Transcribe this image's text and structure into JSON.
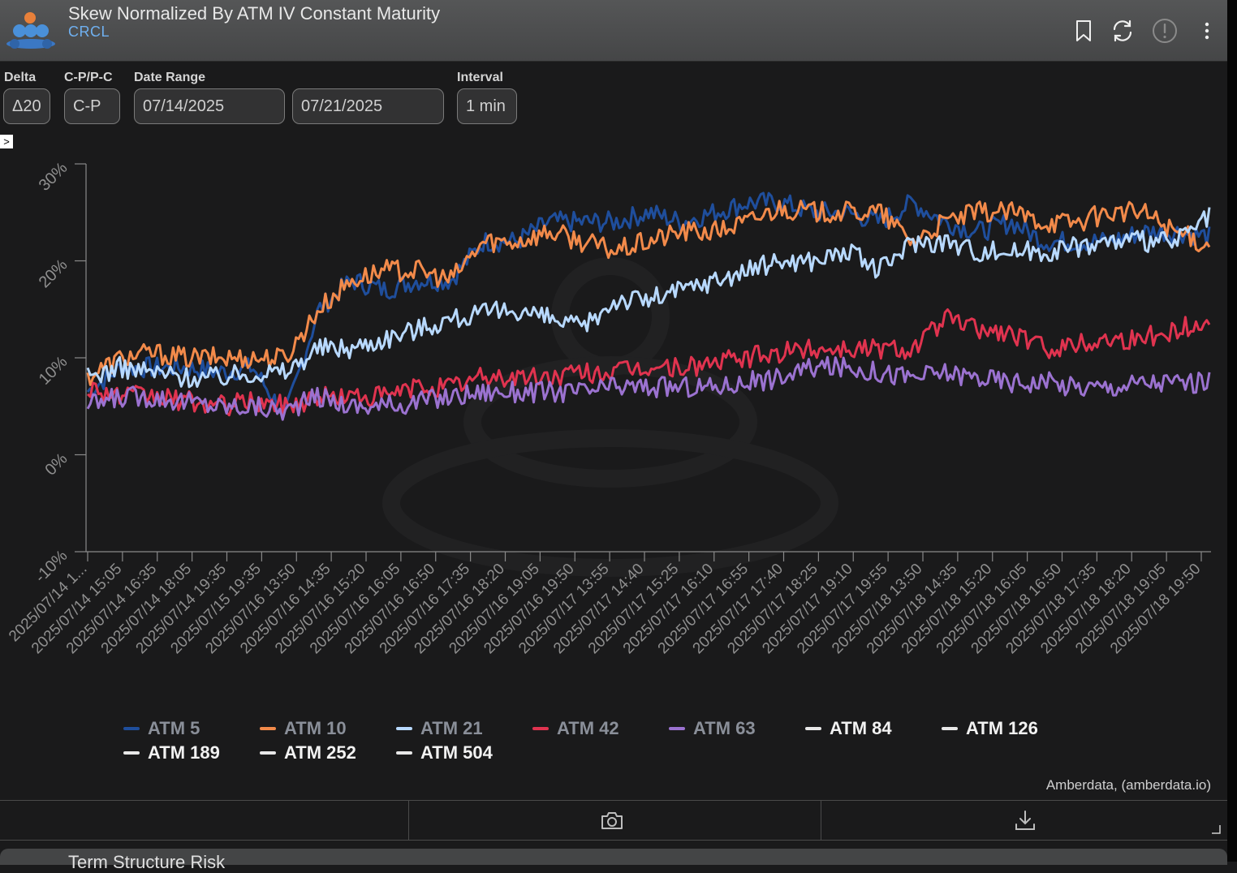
{
  "header": {
    "title": "Skew Normalized By ATM IV Constant Maturity",
    "subtitle": "CRCL",
    "icons": [
      "bookmark-icon",
      "refresh-icon",
      "alert-icon",
      "more-icon"
    ]
  },
  "controls": {
    "delta": {
      "label": "Delta",
      "value": "Δ20"
    },
    "cp": {
      "label": "C-P/P-C",
      "value": "C-P"
    },
    "date_range": {
      "label": "Date Range",
      "start": "07/14/2025",
      "end": "07/21/2025"
    },
    "interval": {
      "label": "Interval",
      "value": "1 min"
    },
    "expander": ">"
  },
  "chart_data": {
    "type": "line",
    "yticks": [
      "30%",
      "20%",
      "10%",
      "0%",
      "-10%"
    ],
    "ylim": [
      -10,
      30
    ],
    "xticks": [
      "2025/07/14 1...",
      "2025/07/14 15:05",
      "2025/07/14 16:35",
      "2025/07/14 18:05",
      "2025/07/14 19:35",
      "2025/07/15 19:35",
      "2025/07/16 13:50",
      "2025/07/16 14:35",
      "2025/07/16 15:20",
      "2025/07/16 16:05",
      "2025/07/16 16:50",
      "2025/07/16 17:35",
      "2025/07/16 18:20",
      "2025/07/16 19:05",
      "2025/07/16 19:50",
      "2025/07/17 13:55",
      "2025/07/17 14:40",
      "2025/07/17 15:25",
      "2025/07/17 16:10",
      "2025/07/17 16:55",
      "2025/07/17 17:40",
      "2025/07/17 18:25",
      "2025/07/17 19:10",
      "2025/07/17 19:55",
      "2025/07/18 13:50",
      "2025/07/18 14:35",
      "2025/07/18 15:20",
      "2025/07/18 16:05",
      "2025/07/18 16:50",
      "2025/07/18 17:35",
      "2025/07/18 18:20",
      "2025/07/18 19:05",
      "2025/07/18 19:50"
    ],
    "grid": false,
    "legend_position": "bottom",
    "series": [
      {
        "name": "ATM 5",
        "color": "#1f4e9c",
        "values": [
          6.5,
          9,
          9,
          9,
          8.5,
          9,
          4,
          15,
          18,
          17,
          18,
          18,
          22,
          22,
          24,
          24,
          24,
          25,
          24,
          25,
          26,
          26,
          25,
          25,
          24,
          26,
          24,
          23,
          24,
          22,
          22,
          22,
          23,
          23,
          22.5
        ]
      },
      {
        "name": "ATM 10",
        "color": "#f28a4a",
        "values": [
          8,
          10,
          10.5,
          10,
          10,
          10,
          10,
          15,
          18,
          19,
          19,
          18,
          22,
          22,
          23,
          22,
          21,
          22,
          23,
          23,
          24,
          25.5,
          25,
          25,
          25,
          22,
          24,
          25,
          25,
          24,
          24,
          25,
          25,
          23,
          21.5
        ]
      },
      {
        "name": "ATM 21",
        "color": "#b8d9ff",
        "values": [
          8,
          9,
          8.5,
          8,
          8,
          8.5,
          8.5,
          11,
          11,
          12,
          13,
          14,
          14.5,
          15,
          14,
          13,
          16,
          16,
          17,
          18,
          19,
          20,
          20,
          21,
          19,
          22,
          22,
          21,
          21,
          21,
          21.5,
          22,
          22,
          22,
          24.5
        ]
      },
      {
        "name": "ATM 42",
        "color": "#e0334f",
        "values": [
          7,
          6,
          6,
          5.5,
          5,
          5.5,
          5,
          6,
          6,
          6,
          7,
          7,
          8,
          8,
          8,
          8.5,
          8.5,
          9,
          9,
          9.5,
          10,
          10.5,
          11,
          11,
          11,
          11,
          14,
          13,
          12.5,
          11,
          11.5,
          12,
          12,
          13,
          13.5
        ]
      },
      {
        "name": "ATM 63",
        "color": "#9b72d0",
        "values": [
          5,
          6,
          6,
          5.5,
          5,
          5,
          4.5,
          6,
          5,
          5,
          5.5,
          6,
          6.5,
          6.5,
          6.5,
          6.5,
          7,
          7,
          7,
          7,
          7.5,
          8,
          9,
          9,
          8.5,
          8,
          8.5,
          8,
          7.5,
          7.5,
          7,
          7,
          7.5,
          7.5,
          7.5
        ]
      },
      {
        "name": "ATM 84",
        "color": "#e8e8e8",
        "values": []
      },
      {
        "name": "ATM 126",
        "color": "#e8e8e8",
        "values": []
      },
      {
        "name": "ATM 189",
        "color": "#e8e8e8",
        "values": []
      },
      {
        "name": "ATM 252",
        "color": "#e8e8e8",
        "values": []
      },
      {
        "name": "ATM 504",
        "color": "#e8e8e8",
        "values": []
      }
    ]
  },
  "credit": "Amberdata, (amberdata.io)",
  "footer": {
    "icons": [
      "camera-icon",
      "download-icon"
    ]
  },
  "next_panel": {
    "title": "Term Structure Risk"
  }
}
